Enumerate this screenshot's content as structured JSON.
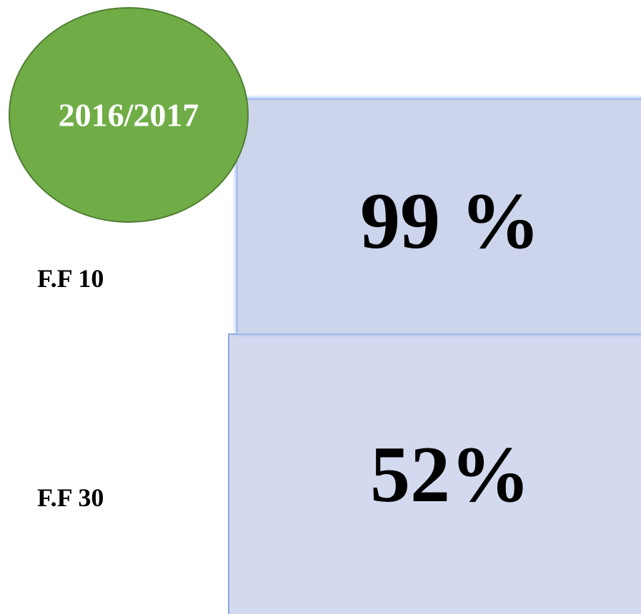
{
  "badge": {
    "label": "2016/2017"
  },
  "rows": [
    {
      "label": "F.F 10",
      "value": "99 %"
    },
    {
      "label": "F.F 30",
      "value": "52%"
    }
  ]
}
